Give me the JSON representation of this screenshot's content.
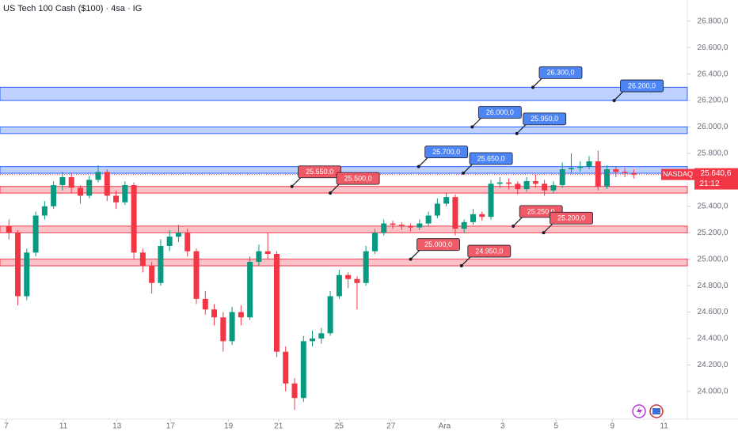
{
  "chart_data": {
    "type": "candlestick",
    "title": "US Tech 100 Cash ($100) · 4sa · IG",
    "up_color": "#089981",
    "down_color": "#f23645",
    "xlim": [
      -1,
      76
    ],
    "ylim": [
      23790,
      26960
    ],
    "xticks": [
      {
        "value": -0.3,
        "label": "7"
      },
      {
        "value": 6.1,
        "label": "11"
      },
      {
        "value": 12.1,
        "label": "13"
      },
      {
        "value": 18.1,
        "label": "17"
      },
      {
        "value": 24.6,
        "label": "19"
      },
      {
        "value": 30.2,
        "label": "21"
      },
      {
        "value": 37.0,
        "label": "25"
      },
      {
        "value": 42.8,
        "label": "27"
      },
      {
        "value": 48.8,
        "label": "Ara"
      },
      {
        "value": 55.3,
        "label": "3"
      },
      {
        "value": 61.3,
        "label": "5"
      },
      {
        "value": 67.6,
        "label": "9"
      },
      {
        "value": 73.4,
        "label": "11"
      }
    ],
    "yticks": [
      {
        "value": 24000,
        "label": "24.000,0"
      },
      {
        "value": 24200,
        "label": "24.200,0"
      },
      {
        "value": 24400,
        "label": "24.400,0"
      },
      {
        "value": 24600,
        "label": "24.600,0"
      },
      {
        "value": 24800,
        "label": "24.800,0"
      },
      {
        "value": 25000,
        "label": "25.000,0"
      },
      {
        "value": 25200,
        "label": "25.200,0"
      },
      {
        "value": 25400,
        "label": "25.400,0"
      },
      {
        "value": 25600,
        "label": "25.600,0"
      },
      {
        "value": 25800,
        "label": "25.800,0"
      },
      {
        "value": 26000,
        "label": "26.000,0"
      },
      {
        "value": 26200,
        "label": "26.200,0"
      },
      {
        "value": 26400,
        "label": "26.400,0"
      },
      {
        "value": 26600,
        "label": "26.600,0"
      },
      {
        "value": 26800,
        "label": "26.800,0"
      }
    ],
    "x": [
      0,
      1,
      2,
      3,
      4,
      5,
      6,
      7,
      8,
      9,
      10,
      11,
      12,
      13,
      14,
      15,
      16,
      17,
      18,
      19,
      20,
      21,
      22,
      23,
      24,
      25,
      26,
      27,
      28,
      29,
      30,
      31,
      32,
      33,
      34,
      35,
      36,
      37,
      38,
      39,
      40,
      41,
      42,
      43,
      44,
      45,
      46,
      47,
      48,
      49,
      50,
      51,
      52,
      53,
      54,
      55,
      56,
      57,
      58,
      59,
      60,
      61,
      62,
      63,
      64,
      65,
      66,
      67,
      68,
      69,
      70
    ],
    "ohlc": [
      [
        25250,
        25300,
        25150,
        25200
      ],
      [
        25200,
        25220,
        24650,
        24720
      ],
      [
        24720,
        25080,
        24690,
        25050
      ],
      [
        25050,
        25360,
        25020,
        25330
      ],
      [
        25330,
        25440,
        25300,
        25400
      ],
      [
        25400,
        25590,
        25380,
        25560
      ],
      [
        25560,
        25660,
        25520,
        25620
      ],
      [
        25620,
        25650,
        25500,
        25540
      ],
      [
        25540,
        25560,
        25420,
        25480
      ],
      [
        25480,
        25630,
        25460,
        25600
      ],
      [
        25600,
        25710,
        25580,
        25660
      ],
      [
        25660,
        25680,
        25440,
        25480
      ],
      [
        25480,
        25520,
        25380,
        25430
      ],
      [
        25430,
        25590,
        25410,
        25560
      ],
      [
        25560,
        25580,
        25000,
        25050
      ],
      [
        25050,
        25080,
        24900,
        24950
      ],
      [
        24950,
        24980,
        24740,
        24820
      ],
      [
        24820,
        25150,
        24800,
        25100
      ],
      [
        25100,
        25220,
        25060,
        25170
      ],
      [
        25170,
        25260,
        25130,
        25200
      ],
      [
        25200,
        25230,
        25020,
        25060
      ],
      [
        25060,
        25080,
        24660,
        24700
      ],
      [
        24700,
        24760,
        24580,
        24620
      ],
      [
        24620,
        24660,
        24500,
        24560
      ],
      [
        24560,
        24600,
        24300,
        24380
      ],
      [
        24380,
        24640,
        24350,
        24600
      ],
      [
        24600,
        24650,
        24500,
        24560
      ],
      [
        24560,
        25020,
        24540,
        24980
      ],
      [
        24980,
        25110,
        24950,
        25060
      ],
      [
        25060,
        25200,
        25000,
        25040
      ],
      [
        25040,
        25060,
        24260,
        24300
      ],
      [
        24300,
        24340,
        24000,
        24060
      ],
      [
        24060,
        24100,
        23860,
        23950
      ],
      [
        23950,
        24420,
        23920,
        24380
      ],
      [
        24380,
        24460,
        24340,
        24400
      ],
      [
        24400,
        24480,
        24360,
        24440
      ],
      [
        24440,
        24760,
        24420,
        24720
      ],
      [
        24720,
        24920,
        24700,
        24880
      ],
      [
        24880,
        24900,
        24780,
        24850
      ],
      [
        24850,
        24870,
        24620,
        24820
      ],
      [
        24820,
        25100,
        24800,
        25060
      ],
      [
        25060,
        25230,
        25040,
        25200
      ],
      [
        25200,
        25300,
        25180,
        25270
      ],
      [
        25270,
        25290,
        25230,
        25260
      ],
      [
        25260,
        25280,
        25220,
        25250
      ],
      [
        25250,
        25270,
        25210,
        25240
      ],
      [
        25240,
        25300,
        25220,
        25270
      ],
      [
        25270,
        25360,
        25250,
        25330
      ],
      [
        25330,
        25460,
        25310,
        25420
      ],
      [
        25420,
        25500,
        25400,
        25470
      ],
      [
        25470,
        25490,
        25180,
        25230
      ],
      [
        25230,
        25300,
        25200,
        25280
      ],
      [
        25280,
        25380,
        25260,
        25340
      ],
      [
        25340,
        25360,
        25290,
        25320
      ],
      [
        25320,
        25600,
        25300,
        25570
      ],
      [
        25570,
        25620,
        25540,
        25580
      ],
      [
        25580,
        25610,
        25530,
        25570
      ],
      [
        25570,
        25590,
        25490,
        25530
      ],
      [
        25530,
        25620,
        25510,
        25590
      ],
      [
        25590,
        25640,
        25540,
        25570
      ],
      [
        25570,
        25600,
        25480,
        25520
      ],
      [
        25520,
        25590,
        25500,
        25560
      ],
      [
        25560,
        25730,
        25540,
        25680
      ],
      [
        25680,
        25800,
        25650,
        25690
      ],
      [
        25690,
        25740,
        25660,
        25700
      ],
      [
        25700,
        25780,
        25680,
        25740
      ],
      [
        25740,
        25820,
        25520,
        25550
      ],
      [
        25550,
        25710,
        25530,
        25680
      ],
      [
        25680,
        25700,
        25620,
        25660
      ],
      [
        25660,
        25690,
        25620,
        25650
      ],
      [
        25650,
        25680,
        25610,
        25640.6
      ]
    ],
    "zones": [
      {
        "top": 26300,
        "bottom": 26200,
        "color": "#2962ff"
      },
      {
        "top": 26000,
        "bottom": 25950,
        "color": "#2962ff"
      },
      {
        "top": 25700,
        "bottom": 25650,
        "color": "#2962ff"
      },
      {
        "top": 25550,
        "bottom": 25500,
        "color": "#f23645"
      },
      {
        "top": 25250,
        "bottom": 25200,
        "color": "#f23645"
      },
      {
        "top": 25000,
        "bottom": 24950,
        "color": "#f23645"
      }
    ],
    "annotations": [
      {
        "x": 58.7,
        "value": 26300,
        "label": "26.300,0",
        "color": "#4d85f5"
      },
      {
        "x": 67.8,
        "value": 26200,
        "label": "26.200,0",
        "color": "#4d85f5"
      },
      {
        "x": 51.9,
        "value": 26000,
        "label": "26.000,0",
        "color": "#4d85f5"
      },
      {
        "x": 56.9,
        "value": 25950,
        "label": "25.950,0",
        "color": "#4d85f5"
      },
      {
        "x": 45.9,
        "value": 25700,
        "label": "25.700,0",
        "color": "#4d85f5"
      },
      {
        "x": 50.9,
        "value": 25650,
        "label": "25.650,0",
        "color": "#4d85f5"
      },
      {
        "x": 31.7,
        "value": 25550,
        "label": "25.550,0",
        "color": "#ef5a66"
      },
      {
        "x": 36.0,
        "value": 25500,
        "label": "25.500,0",
        "color": "#ef5a66"
      },
      {
        "x": 56.5,
        "value": 25250,
        "label": "25.250,0",
        "color": "#ef5a66"
      },
      {
        "x": 59.9,
        "value": 25200,
        "label": "25.200,0",
        "color": "#ef5a66"
      },
      {
        "x": 45.0,
        "value": 25000,
        "label": "25.000,0",
        "color": "#ef5a66"
      },
      {
        "x": 50.7,
        "value": 24950,
        "label": "24.950,0",
        "color": "#ef5a66"
      }
    ],
    "last_price": {
      "value": 25640.6,
      "label": "25.640,6",
      "symbol": "NASDAQ",
      "countdown": "21:12"
    }
  }
}
